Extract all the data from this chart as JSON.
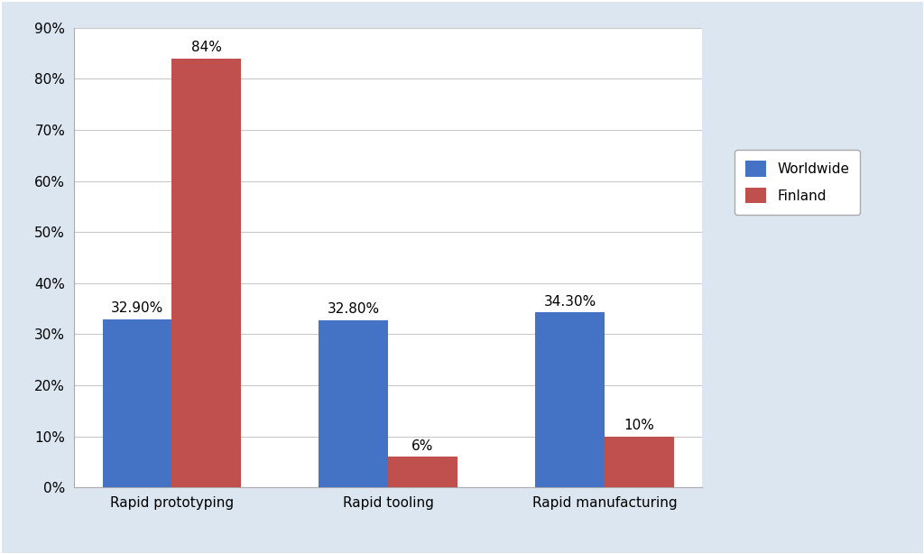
{
  "categories": [
    "Rapid prototyping",
    "Rapid tooling",
    "Rapid manufacturing"
  ],
  "worldwide_values": [
    32.9,
    32.8,
    34.3
  ],
  "finland_values": [
    84,
    6,
    10
  ],
  "worldwide_labels": [
    "32.90%",
    "32.80%",
    "34.30%"
  ],
  "finland_labels": [
    "84%",
    "6%",
    "10%"
  ],
  "worldwide_color": "#4472C4",
  "finland_color": "#C0504D",
  "ylim": [
    0,
    90
  ],
  "yticks": [
    0,
    10,
    20,
    30,
    40,
    50,
    60,
    70,
    80,
    90
  ],
  "ytick_labels": [
    "0%",
    "10%",
    "20%",
    "30%",
    "40%",
    "50%",
    "60%",
    "70%",
    "80%",
    "90%"
  ],
  "legend_labels": [
    "Worldwide",
    "Finland"
  ],
  "bar_width": 0.32,
  "background_color": "#ffffff",
  "outer_bg_color": "#dce6f1",
  "grid_color": "#c8c8c8",
  "label_fontsize": 11,
  "tick_fontsize": 11,
  "annotation_fontsize": 11
}
